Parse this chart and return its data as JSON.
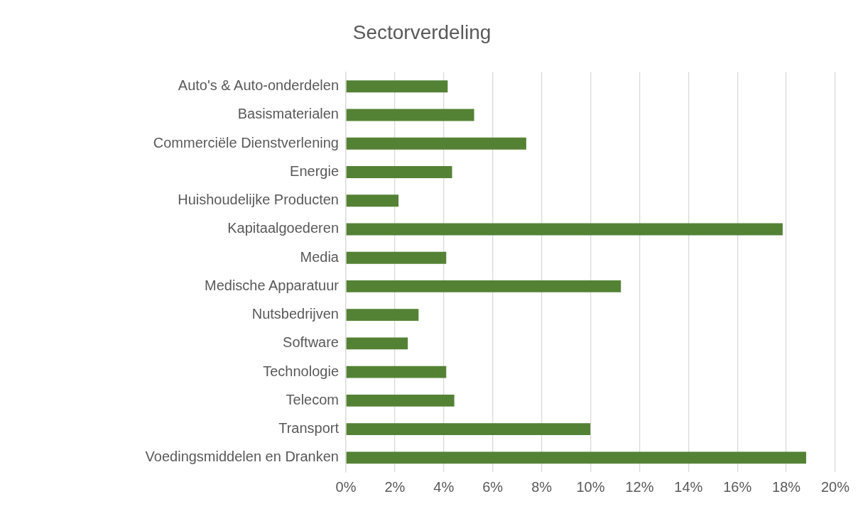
{
  "chart_data": {
    "type": "bar",
    "orientation": "horizontal",
    "title": "Sectorverdeling",
    "categories": [
      "Auto's & Auto-onderdelen",
      "Basismaterialen",
      "Commerciële Dienstverlening",
      "Energie",
      "Huishoudelijke Producten",
      "Kapitaalgoederen",
      "Media",
      "Medische Apparatuur",
      "Nutsbedrijven",
      "Software",
      "Technologie",
      "Telecom",
      "Transport",
      "Voedingsmiddelen en Dranken"
    ],
    "values": [
      4.16,
      5.24,
      7.37,
      4.34,
      2.15,
      17.85,
      4.1,
      11.24,
      2.97,
      2.53,
      4.1,
      4.43,
      9.99,
      18.81
    ],
    "color": "#548235",
    "xlim": [
      0,
      20
    ],
    "xticks": [
      {
        "value": 0,
        "label": "0%"
      },
      {
        "value": 2,
        "label": "2%"
      },
      {
        "value": 4,
        "label": "4%"
      },
      {
        "value": 6,
        "label": "6%"
      },
      {
        "value": 8,
        "label": "8%"
      },
      {
        "value": 10,
        "label": "10%"
      },
      {
        "value": 12,
        "label": "12%"
      },
      {
        "value": 14,
        "label": "14%"
      },
      {
        "value": 16,
        "label": "16%"
      },
      {
        "value": 18,
        "label": "18%"
      },
      {
        "value": 20,
        "label": "20%"
      }
    ],
    "grid": "x",
    "legend": false
  }
}
